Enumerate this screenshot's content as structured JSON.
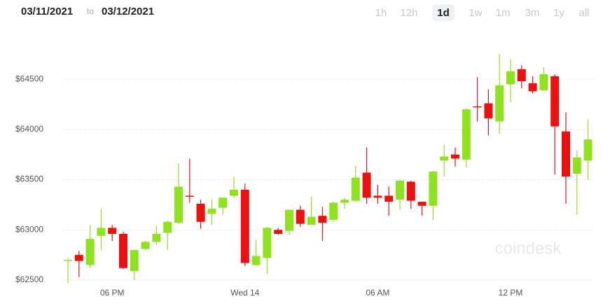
{
  "header": {
    "from": "03/11/2021",
    "to_word": "to",
    "to": "03/12/2021",
    "ranges": [
      "1h",
      "12h",
      "1d",
      "1w",
      "1m",
      "3m",
      "1y",
      "all"
    ],
    "selected_range": 2,
    "watermark": "coindesk"
  },
  "chart_data": {
    "type": "candlestick",
    "categories": [
      null,
      null,
      null,
      null,
      "06 PM",
      null,
      null,
      null,
      null,
      null,
      null,
      null,
      null,
      null,
      null,
      null,
      "Wed 14",
      null,
      null,
      null,
      null,
      null,
      null,
      null,
      null,
      null,
      null,
      null,
      "06 AM",
      null,
      null,
      null,
      null,
      null,
      null,
      null,
      null,
      null,
      null,
      null,
      "12 PM",
      null,
      null,
      null,
      null,
      null,
      null,
      null
    ],
    "open": [
      62690,
      62750,
      62650,
      62940,
      63020,
      62960,
      62590,
      62810,
      62880,
      62970,
      63070,
      63340,
      63260,
      63160,
      63220,
      63340,
      63400,
      62650,
      62720,
      63000,
      62990,
      63200,
      63050,
      63140,
      63100,
      63270,
      63290,
      63570,
      63340,
      63340,
      63300,
      63480,
      63280,
      63240,
      63690,
      63750,
      63700,
      64230,
      64260,
      64080,
      64450,
      64600,
      64460,
      64390,
      64530,
      63980,
      63560,
      63690
    ],
    "high": [
      62720,
      62790,
      63050,
      63210,
      63050,
      62980,
      62800,
      62890,
      63040,
      63090,
      63660,
      63710,
      63300,
      63300,
      63320,
      63530,
      63460,
      62900,
      63030,
      63020,
      63200,
      63240,
      63330,
      63230,
      63280,
      63320,
      63640,
      63820,
      63450,
      63430,
      63500,
      63490,
      63280,
      63590,
      63850,
      63820,
      64210,
      64520,
      64400,
      64750,
      64700,
      64640,
      64530,
      64620,
      64550,
      64170,
      63790,
      64100
    ],
    "low": [
      62470,
      62530,
      62620,
      62800,
      62890,
      62610,
      62500,
      62800,
      62850,
      62800,
      63060,
      63270,
      63010,
      63050,
      63150,
      63320,
      62640,
      62640,
      62560,
      62950,
      62950,
      63030,
      63050,
      62890,
      63080,
      63210,
      63280,
      63260,
      63260,
      63140,
      63200,
      63210,
      63140,
      63100,
      63530,
      63630,
      63620,
      64080,
      63940,
      63960,
      64270,
      64410,
      64360,
      64380,
      63550,
      63260,
      63150,
      63500
    ],
    "close": [
      62700,
      62690,
      62910,
      63020,
      62960,
      62620,
      62800,
      62880,
      62960,
      63080,
      63430,
      63330,
      63080,
      63210,
      63320,
      63400,
      62670,
      62740,
      63020,
      62960,
      63200,
      63060,
      63130,
      63070,
      63270,
      63300,
      63520,
      63320,
      63320,
      63280,
      63490,
      63290,
      63240,
      63580,
      63730,
      63710,
      64200,
      64220,
      64110,
      64440,
      64580,
      64480,
      64380,
      64550,
      64030,
      63530,
      63720,
      63900
    ],
    "up_color": "#8ee21e",
    "down_color": "#ee1010",
    "ylim": [
      62430,
      65010
    ],
    "yticks": [
      {
        "value": 62500,
        "label": "$62500"
      },
      {
        "value": 63000,
        "label": "$63000"
      },
      {
        "value": 63500,
        "label": "$63500"
      },
      {
        "value": 64000,
        "label": "$64000"
      },
      {
        "value": 64500,
        "label": "$64500"
      }
    ],
    "grid": true
  }
}
